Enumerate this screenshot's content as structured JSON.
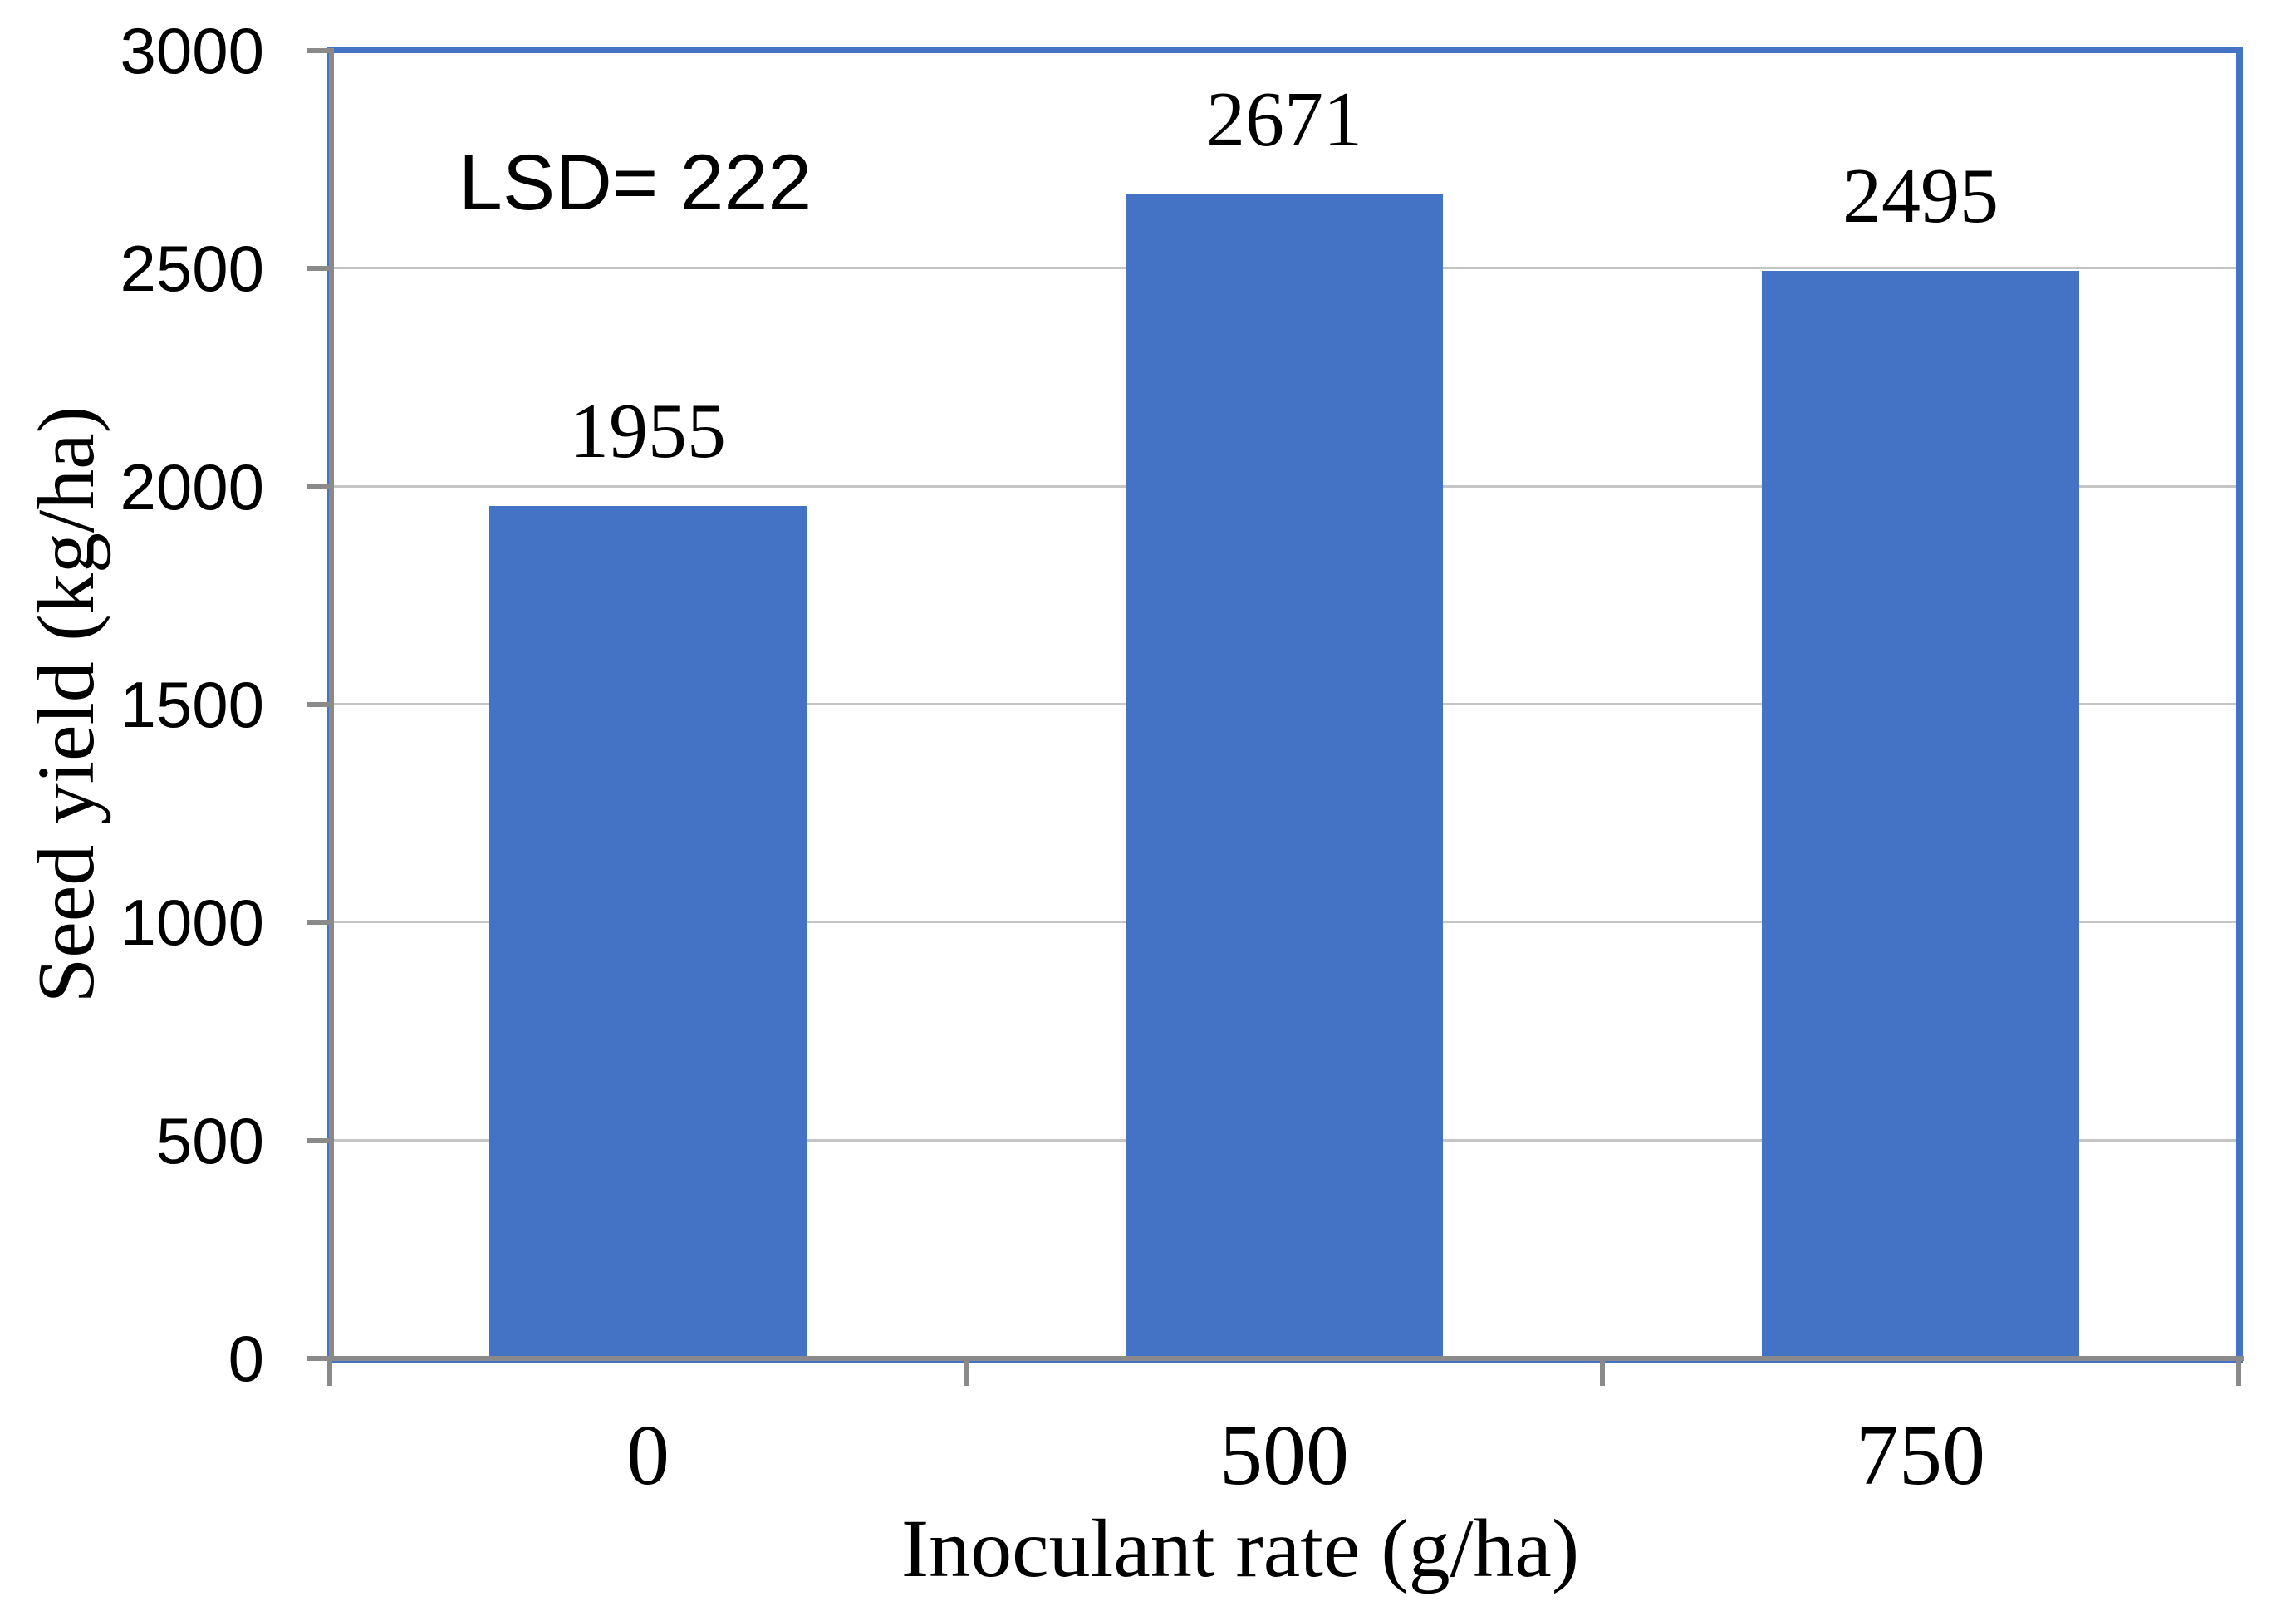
{
  "chart_data": {
    "type": "bar",
    "title": "",
    "categories": [
      "0",
      "500",
      "750"
    ],
    "values": [
      1955,
      2671,
      2495
    ],
    "data_labels": [
      "1955",
      "2671",
      "2495"
    ],
    "xlabel": "Inoculant rate (g/ha)",
    "ylabel": "Seed yield (kg/ha)",
    "annotation": "LSD= 222",
    "ylim": [
      0,
      3000
    ],
    "ytick_step": 500,
    "ytick_labels": [
      "0",
      "500",
      "1000",
      "1500",
      "2000",
      "2500",
      "3000"
    ],
    "grid": true,
    "legend": false,
    "colors": {
      "bar": "#4472C4",
      "plot_border": "#4472C4",
      "axis": "#8A8A8A",
      "tick": "#8A8A8A",
      "gridline": "#C5C5C5",
      "text": "#000000"
    }
  }
}
